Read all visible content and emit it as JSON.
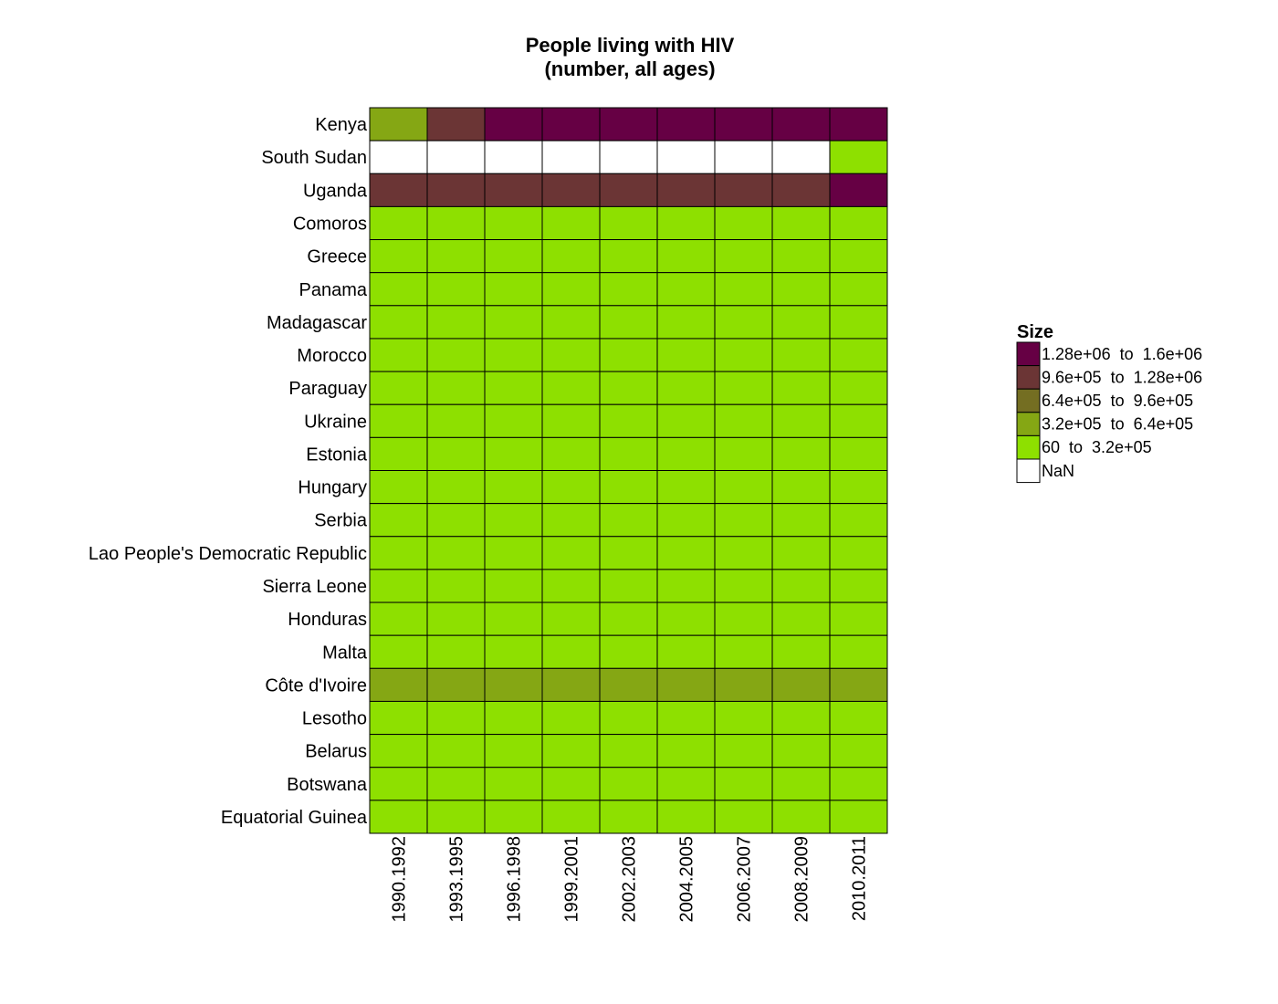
{
  "chart_data": {
    "type": "heatmap",
    "title": "People living with HIV",
    "subtitle": "(number, all ages)",
    "rows": [
      "Kenya",
      "South Sudan",
      "Uganda",
      "Comoros",
      "Greece",
      "Panama",
      "Madagascar",
      "Morocco",
      "Paraguay",
      "Ukraine",
      "Estonia",
      "Hungary",
      "Serbia",
      "Lao People's Democratic Republic",
      "Sierra Leone",
      "Honduras",
      "Malta",
      "Côte d'Ivoire",
      "Lesotho",
      "Belarus",
      "Botswana",
      "Equatorial Guinea"
    ],
    "columns": [
      "1990.1992",
      "1993.1995",
      "1996.1998",
      "1999.2001",
      "2002.2003",
      "2004.2005",
      "2006.2007",
      "2008.2009",
      "2010.2011"
    ],
    "cells": [
      [
        3,
        1,
        0,
        0,
        0,
        0,
        0,
        0,
        0
      ],
      [
        5,
        5,
        5,
        5,
        5,
        5,
        5,
        5,
        4
      ],
      [
        1,
        1,
        1,
        1,
        1,
        1,
        1,
        1,
        0
      ],
      [
        4,
        4,
        4,
        4,
        4,
        4,
        4,
        4,
        4
      ],
      [
        4,
        4,
        4,
        4,
        4,
        4,
        4,
        4,
        4
      ],
      [
        4,
        4,
        4,
        4,
        4,
        4,
        4,
        4,
        4
      ],
      [
        4,
        4,
        4,
        4,
        4,
        4,
        4,
        4,
        4
      ],
      [
        4,
        4,
        4,
        4,
        4,
        4,
        4,
        4,
        4
      ],
      [
        4,
        4,
        4,
        4,
        4,
        4,
        4,
        4,
        4
      ],
      [
        4,
        4,
        4,
        4,
        4,
        4,
        4,
        4,
        4
      ],
      [
        4,
        4,
        4,
        4,
        4,
        4,
        4,
        4,
        4
      ],
      [
        4,
        4,
        4,
        4,
        4,
        4,
        4,
        4,
        4
      ],
      [
        4,
        4,
        4,
        4,
        4,
        4,
        4,
        4,
        4
      ],
      [
        4,
        4,
        4,
        4,
        4,
        4,
        4,
        4,
        4
      ],
      [
        4,
        4,
        4,
        4,
        4,
        4,
        4,
        4,
        4
      ],
      [
        4,
        4,
        4,
        4,
        4,
        4,
        4,
        4,
        4
      ],
      [
        4,
        4,
        4,
        4,
        4,
        4,
        4,
        4,
        4
      ],
      [
        3,
        3,
        3,
        3,
        3,
        3,
        3,
        3,
        3
      ],
      [
        4,
        4,
        4,
        4,
        4,
        4,
        4,
        4,
        4
      ],
      [
        4,
        4,
        4,
        4,
        4,
        4,
        4,
        4,
        4
      ],
      [
        4,
        4,
        4,
        4,
        4,
        4,
        4,
        4,
        4
      ],
      [
        4,
        4,
        4,
        4,
        4,
        4,
        4,
        4,
        4
      ]
    ],
    "legend": {
      "title": "Size",
      "placement": "right",
      "items": [
        {
          "label": "1.28e+06  to  1.6e+06",
          "color": "#660044"
        },
        {
          "label": "9.6e+05  to  1.28e+06",
          "color": "#6b3535"
        },
        {
          "label": "6.4e+05  to  9.6e+05",
          "color": "#746e22"
        },
        {
          "label": "3.2e+05  to  6.4e+05",
          "color": "#85a714"
        },
        {
          "label": "60  to  3.2e+05",
          "color": "#8ee000"
        },
        {
          "label": "NaN",
          "color": "#ffffff"
        }
      ]
    },
    "grid": true
  }
}
